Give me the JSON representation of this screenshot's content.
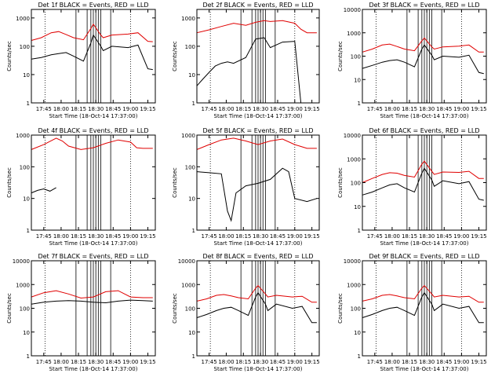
{
  "figure": {
    "ylabel": "Counts/sec",
    "xlabel": "Start Time (18-Oct-14 17:37:00)",
    "x_tick_labels": [
      "17:45",
      "18:00",
      "18:15",
      "18:30",
      "18:45",
      "19:00",
      "19:15"
    ],
    "y_tick_labels_small": [
      "1",
      "10",
      "100",
      "1000"
    ],
    "y_tick_labels_large": [
      "1",
      "10",
      "100",
      "1000",
      "10000"
    ]
  },
  "chart_data": [
    {
      "type": "line",
      "title": "Det 1f BLACK = Events, RED = LLD",
      "ylim": [
        1,
        2000
      ],
      "ylabel": "Counts/sec",
      "xlabel": "Start Time (18-Oct-14 17:37:00)",
      "series": [
        {
          "name": "Events",
          "color": "#000000",
          "x": [
            0,
            8,
            16,
            22,
            28,
            34,
            42,
            48,
            50,
            56,
            58,
            65,
            78,
            86,
            94,
            98
          ],
          "y": [
            35,
            40,
            50,
            55,
            60,
            45,
            30,
            130,
            250,
            100,
            70,
            100,
            90,
            110,
            16,
            15
          ]
        },
        {
          "name": "LLD",
          "color": "#e00000",
          "x": [
            0,
            8,
            16,
            22,
            28,
            34,
            42,
            48,
            50,
            56,
            58,
            65,
            78,
            86,
            94,
            98
          ],
          "y": [
            160,
            200,
            300,
            330,
            260,
            200,
            170,
            420,
            600,
            250,
            200,
            250,
            270,
            300,
            150,
            145
          ]
        }
      ]
    },
    {
      "type": "line",
      "title": "Det 2f BLACK = Events, RED = LLD",
      "ylim": [
        1,
        2000
      ],
      "ylabel": "Counts/sec",
      "xlabel": "Start Time (18-Oct-14 17:37:00)",
      "series": [
        {
          "name": "Events",
          "color": "#000000",
          "x": [
            0,
            5,
            10,
            15,
            20,
            25,
            30,
            40,
            48,
            55,
            60,
            70,
            80,
            85
          ],
          "y": [
            4,
            7,
            12,
            20,
            25,
            28,
            25,
            40,
            180,
            200,
            90,
            140,
            150,
            1
          ]
        },
        {
          "name": "LLD",
          "color": "#e00000",
          "x": [
            0,
            10,
            20,
            30,
            40,
            48,
            55,
            60,
            70,
            80,
            85,
            90,
            98
          ],
          "y": [
            300,
            380,
            500,
            650,
            550,
            700,
            800,
            750,
            800,
            650,
            400,
            300,
            300
          ]
        }
      ]
    },
    {
      "type": "line",
      "title": "Det 3f BLACK = Events, RED = LLD",
      "ylim": [
        1,
        10000
      ],
      "ylabel": "Counts/sec",
      "xlabel": "Start Time (18-Oct-14 17:37:00)",
      "series": [
        {
          "name": "Events",
          "color": "#000000",
          "x": [
            0,
            8,
            16,
            22,
            28,
            34,
            42,
            48,
            50,
            56,
            58,
            65,
            78,
            86,
            94,
            98
          ],
          "y": [
            30,
            40,
            55,
            65,
            70,
            55,
            35,
            200,
            300,
            110,
            70,
            100,
            90,
            110,
            20,
            18
          ]
        },
        {
          "name": "LLD",
          "color": "#e00000",
          "x": [
            0,
            8,
            16,
            22,
            28,
            34,
            42,
            48,
            50,
            56,
            58,
            65,
            78,
            86,
            94,
            98
          ],
          "y": [
            150,
            200,
            300,
            330,
            260,
            200,
            170,
            450,
            600,
            250,
            200,
            250,
            270,
            300,
            150,
            150
          ]
        }
      ]
    },
    {
      "type": "line",
      "title": "Det 4f BLACK = Events, RED = LLD",
      "ylim": [
        1,
        1000
      ],
      "ylabel": "Counts/sec",
      "xlabel": "Start Time (18-Oct-14 17:37:00)",
      "series": [
        {
          "name": "Events",
          "color": "#000000",
          "x": [
            0,
            5,
            10,
            15,
            20
          ],
          "y": [
            15,
            18,
            20,
            17,
            22
          ]
        },
        {
          "name": "LLD",
          "color": "#e00000",
          "x": [
            0,
            10,
            20,
            25,
            30,
            40,
            50,
            60,
            70,
            80,
            85,
            90,
            98
          ],
          "y": [
            350,
            500,
            800,
            650,
            450,
            350,
            400,
            550,
            700,
            600,
            400,
            380,
            380
          ]
        }
      ]
    },
    {
      "type": "line",
      "title": "Det 5f BLACK = Events, RED = LLD",
      "ylim": [
        1,
        1000
      ],
      "ylabel": "Counts/sec",
      "xlabel": "Start Time (18-Oct-14 17:37:00)",
      "series": [
        {
          "name": "Events",
          "color": "#000000",
          "x": [
            0,
            10,
            20,
            25,
            28,
            32,
            40,
            50,
            60,
            70,
            75,
            80,
            90,
            98
          ],
          "y": [
            70,
            65,
            60,
            4,
            2,
            15,
            25,
            30,
            40,
            90,
            70,
            10,
            8,
            10
          ]
        },
        {
          "name": "LLD",
          "color": "#e00000",
          "x": [
            0,
            10,
            20,
            30,
            40,
            50,
            60,
            70,
            80,
            90,
            98
          ],
          "y": [
            350,
            500,
            700,
            800,
            650,
            500,
            650,
            750,
            500,
            380,
            380
          ]
        }
      ]
    },
    {
      "type": "line",
      "title": "Det 6f BLACK = Events, RED = LLD",
      "ylim": [
        1,
        10000
      ],
      "ylabel": "Counts/sec",
      "xlabel": "Start Time (18-Oct-14 17:37:00)",
      "series": [
        {
          "name": "Events",
          "color": "#000000",
          "x": [
            0,
            8,
            16,
            22,
            28,
            34,
            42,
            48,
            50,
            56,
            58,
            65,
            78,
            86,
            94,
            98
          ],
          "y": [
            30,
            40,
            60,
            80,
            90,
            60,
            40,
            250,
            400,
            130,
            70,
            120,
            90,
            110,
            20,
            18
          ]
        },
        {
          "name": "LLD",
          "color": "#e00000",
          "x": [
            0,
            8,
            16,
            22,
            28,
            34,
            42,
            48,
            50,
            56,
            58,
            65,
            78,
            86,
            94,
            98
          ],
          "y": [
            100,
            150,
            220,
            260,
            250,
            200,
            170,
            600,
            800,
            300,
            220,
            280,
            270,
            300,
            150,
            150
          ]
        }
      ]
    },
    {
      "type": "line",
      "title": "Det 7f BLACK = Events, RED = LLD",
      "ylim": [
        1,
        10000
      ],
      "ylabel": "Counts/sec",
      "xlabel": "Start Time (18-Oct-14 17:37:00)",
      "series": [
        {
          "name": "Events",
          "color": "#000000",
          "x": [
            0,
            10,
            20,
            30,
            40,
            50,
            60,
            70,
            80,
            90,
            98
          ],
          "y": [
            150,
            180,
            200,
            210,
            200,
            180,
            170,
            200,
            220,
            210,
            200
          ]
        },
        {
          "name": "LLD",
          "color": "#e00000",
          "x": [
            0,
            10,
            20,
            30,
            40,
            50,
            60,
            70,
            80,
            90,
            98
          ],
          "y": [
            300,
            450,
            550,
            400,
            270,
            300,
            500,
            550,
            300,
            280,
            280
          ]
        }
      ]
    },
    {
      "type": "line",
      "title": "Det 8f BLACK = Events, RED = LLD",
      "ylim": [
        1,
        10000
      ],
      "ylabel": "Counts/sec",
      "xlabel": "Start Time (18-Oct-14 17:37:00)",
      "series": [
        {
          "name": "Events",
          "color": "#000000",
          "x": [
            0,
            8,
            16,
            22,
            28,
            34,
            42,
            48,
            50,
            56,
            58,
            65,
            78,
            86,
            94,
            98
          ],
          "y": [
            40,
            55,
            80,
            100,
            110,
            80,
            50,
            300,
            450,
            150,
            80,
            150,
            100,
            120,
            25,
            25
          ]
        },
        {
          "name": "LLD",
          "color": "#e00000",
          "x": [
            0,
            8,
            16,
            22,
            28,
            34,
            42,
            48,
            50,
            56,
            58,
            65,
            78,
            86,
            94,
            98
          ],
          "y": [
            200,
            250,
            350,
            380,
            330,
            280,
            250,
            700,
            900,
            400,
            300,
            350,
            300,
            320,
            180,
            180
          ]
        }
      ]
    },
    {
      "type": "line",
      "title": "Det 9f BLACK = Events, RED = LLD",
      "ylim": [
        1,
        10000
      ],
      "ylabel": "Counts/sec",
      "xlabel": "Start Time (18-Oct-14 17:37:00)",
      "series": [
        {
          "name": "Events",
          "color": "#000000",
          "x": [
            0,
            8,
            16,
            22,
            28,
            34,
            42,
            48,
            50,
            56,
            58,
            65,
            78,
            86,
            94,
            98
          ],
          "y": [
            40,
            55,
            80,
            100,
            110,
            80,
            50,
            300,
            450,
            150,
            80,
            150,
            100,
            120,
            25,
            25
          ]
        },
        {
          "name": "LLD",
          "color": "#e00000",
          "x": [
            0,
            8,
            16,
            22,
            28,
            34,
            42,
            48,
            50,
            56,
            58,
            65,
            78,
            86,
            94,
            98
          ],
          "y": [
            200,
            250,
            350,
            380,
            330,
            280,
            250,
            700,
            900,
            400,
            300,
            350,
            300,
            320,
            180,
            180
          ]
        }
      ]
    }
  ]
}
